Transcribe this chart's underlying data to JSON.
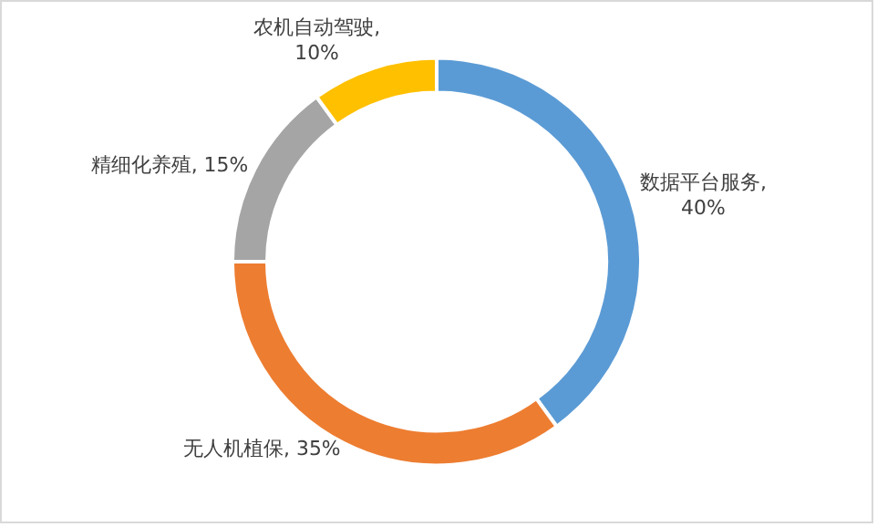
{
  "chart_data": {
    "type": "donut",
    "categories": [
      "数据平台服务",
      "无人机植保",
      "精细化养殖",
      "农机自动驾驶"
    ],
    "values": [
      40,
      35,
      15,
      10
    ],
    "colors": [
      "#5b9bd5",
      "#ed7d31",
      "#a5a5a5",
      "#ffc000"
    ],
    "value_labels": [
      ", 40%",
      ", 35%",
      ", 15%",
      ", 10%"
    ],
    "legend": false
  }
}
